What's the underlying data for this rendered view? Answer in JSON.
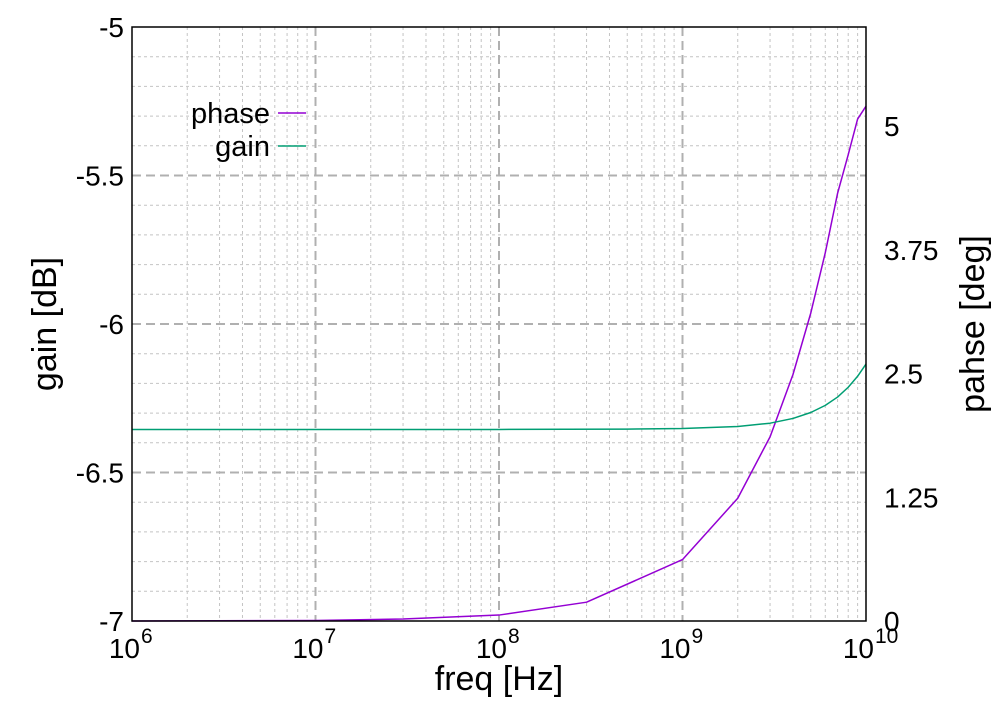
{
  "chart_data": {
    "type": "line",
    "xlabel": "freq [Hz]",
    "ylabel_left": "gain [dB]",
    "ylabel_right": "pahse [deg]",
    "x_scale": "log",
    "xlim": [
      1000000,
      10000000000
    ],
    "ylim_left": [
      -7,
      -5
    ],
    "ylim_right": [
      0,
      6
    ],
    "x_ticks": [
      {
        "base": "10",
        "exp": "6"
      },
      {
        "base": "10",
        "exp": "7"
      },
      {
        "base": "10",
        "exp": "8"
      },
      {
        "base": "10",
        "exp": "9"
      },
      {
        "base": "10",
        "exp": "10"
      }
    ],
    "y_left_ticks": [
      "-5",
      "-5.5",
      "-6",
      "-6.5",
      "-7"
    ],
    "y_left_tick_values": [
      -5,
      -5.5,
      -6,
      -6.5,
      -7
    ],
    "y_right_ticks": [
      "5",
      "3.75",
      "2.5",
      "1.25",
      "0"
    ],
    "y_right_tick_values": [
      5,
      3.75,
      2.5,
      1.25,
      0
    ],
    "grid": true,
    "legend_position": "top-left",
    "series": [
      {
        "name": "phase",
        "axis": "right",
        "color": "#9400d3",
        "x": [
          1000000,
          10000000,
          30000000,
          100000000,
          300000000,
          1000000000,
          2000000000,
          3000000000,
          4000000000,
          5000000000,
          6000000000,
          7000000000,
          8000000000,
          9000000000,
          10000000000
        ],
        "y": [
          0.0,
          0.005,
          0.02,
          0.06,
          0.19,
          0.62,
          1.24,
          1.86,
          2.49,
          3.11,
          3.72,
          4.32,
          4.71,
          5.07,
          5.2
        ]
      },
      {
        "name": "gain",
        "axis": "left",
        "color": "#009e73",
        "x": [
          1000000,
          10000000,
          100000000,
          500000000,
          1000000000,
          2000000000,
          3000000000,
          4000000000,
          5000000000,
          6000000000,
          7000000000,
          8000000000,
          9000000000,
          10000000000
        ],
        "y": [
          -6.355,
          -6.355,
          -6.355,
          -6.354,
          -6.352,
          -6.345,
          -6.334,
          -6.318,
          -6.298,
          -6.274,
          -6.246,
          -6.213,
          -6.176,
          -6.135
        ]
      }
    ]
  }
}
